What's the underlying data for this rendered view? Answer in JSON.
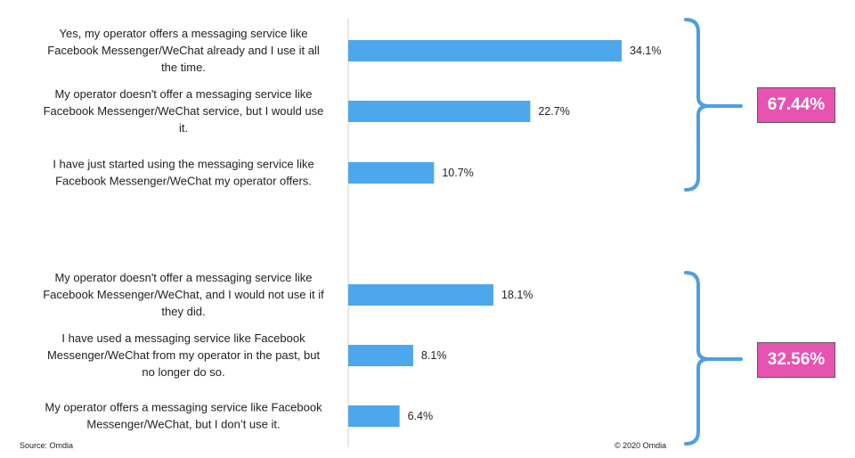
{
  "chart_data": {
    "type": "bar",
    "orientation": "horizontal",
    "categories": [
      "Yes, my operator offers a messaging service like Facebook Messenger/WeChat already and I use it all the time.",
      "My operator doesn't offer a messaging service like Facebook Messenger/WeChat service, but I would use it.",
      "I have just started using the messaging service like Facebook Messenger/WeChat my operator offers.",
      "My operator doesn't offer a messaging service like Facebook Messenger/WeChat, and I would not use it if they did.",
      "I have used a messaging service like Facebook Messenger/WeChat from my operator in the past, but no longer do so.",
      "My operator offers a messaging service like Facebook Messenger/WeChat, but I don’t use it."
    ],
    "category_lines": [
      [
        "Yes, my operator offers a messaging service like",
        "Facebook Messenger/WeChat already and I use it all",
        "the time."
      ],
      [
        "My operator doesn't offer a messaging service like",
        "Facebook Messenger/WeChat service, but I would use",
        "it."
      ],
      [
        "I have just started using the messaging service like",
        "Facebook Messenger/WeChat my operator offers."
      ],
      [
        "My operator doesn't offer a messaging service like",
        "Facebook Messenger/WeChat, and I would not use it if",
        "they did."
      ],
      [
        "I have used a messaging service like Facebook",
        "Messenger/WeChat from my operator in the past, but",
        "no longer do so."
      ],
      [
        "My operator offers a messaging service like Facebook",
        "Messenger/WeChat, but I don’t use it."
      ]
    ],
    "values": [
      34.1,
      22.7,
      10.7,
      18.1,
      8.1,
      6.4
    ],
    "value_labels": [
      "34.1%",
      "22.7%",
      "10.7%",
      "18.1%",
      "8.1%",
      "6.4%"
    ],
    "groups": [
      {
        "items": [
          0,
          1,
          2
        ],
        "total_label": "67.44%"
      },
      {
        "items": [
          3,
          4,
          5
        ],
        "total_label": "32.56%"
      }
    ],
    "xlim": [
      0,
      100
    ],
    "grid": false,
    "colors": {
      "bar": "#4da7ec",
      "bracket": "#4d9fe0",
      "total_badge": "#e653b1",
      "axis": "#d0d0d0"
    }
  },
  "footer": {
    "source": "Source: Omdia",
    "copyright": "© 2020 Omdia"
  }
}
